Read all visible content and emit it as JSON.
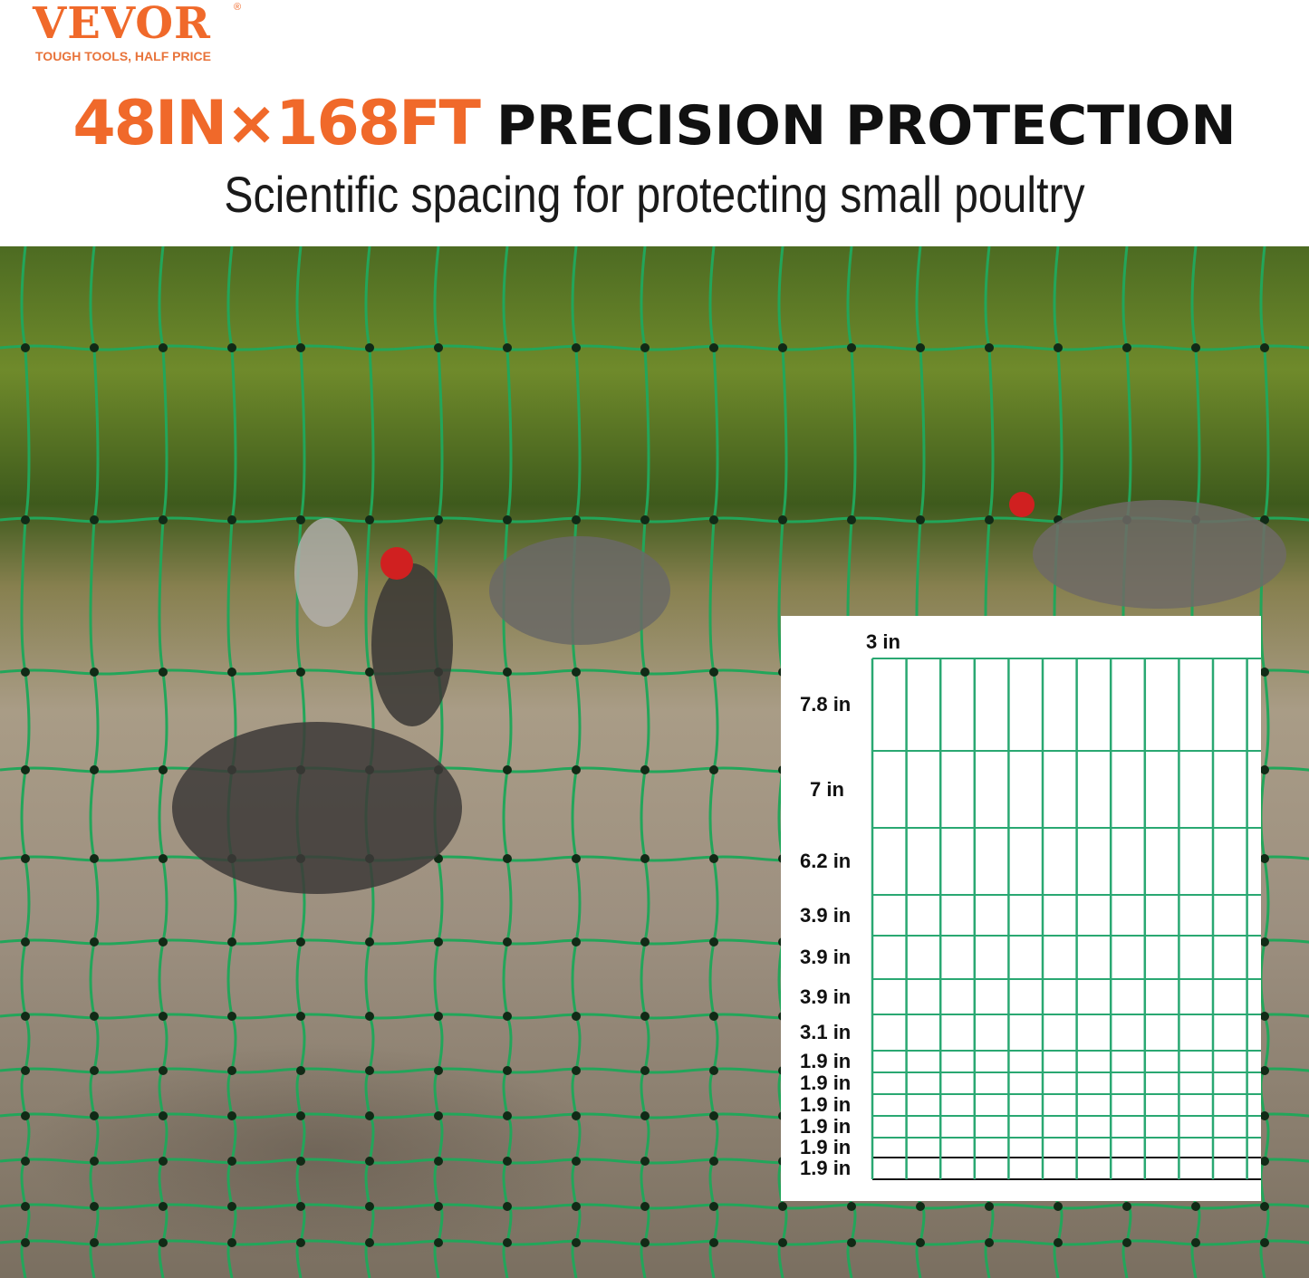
{
  "brand": {
    "name": "VEVOR",
    "registered": "®",
    "tagline": "TOUGH TOOLS, HALF PRICE",
    "color": "#f0692a"
  },
  "headline": {
    "size": "48IN×168FT",
    "title": "PRECISION PROTECTION"
  },
  "subheadline": "Scientific spacing for protecting small poultry",
  "colors": {
    "mesh_green": "#22a65a",
    "diagram_green": "#2aa872"
  },
  "diagram": {
    "column_spacing": "3 in",
    "row_spacings": [
      "7.8 in",
      "7 in",
      "6.2 in",
      "3.9 in",
      "3.9 in",
      "3.9 in",
      "3.1 in",
      "1.9 in",
      "1.9 in",
      "1.9 in",
      "1.9 in",
      "1.9 in",
      "1.9 in"
    ]
  }
}
